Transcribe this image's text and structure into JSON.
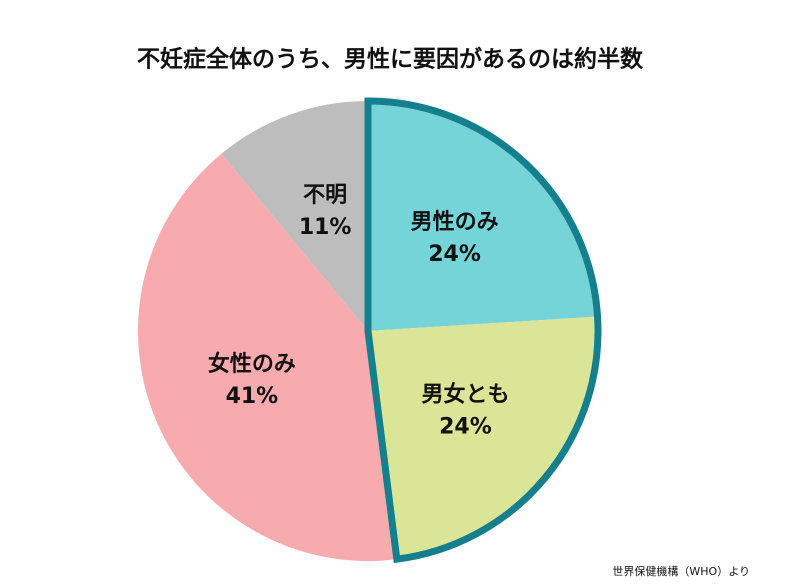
{
  "chart_data": {
    "type": "pie",
    "title": "不妊症全体のうち、男性に要因があるのは約半数",
    "categories": [
      "男性のみ",
      "男女とも",
      "女性のみ",
      "不明"
    ],
    "values": [
      24,
      24,
      41,
      11
    ],
    "value_labels": [
      "24%",
      "24%",
      "41%",
      "11%"
    ],
    "colors": [
      "#74d4d7",
      "#dae597",
      "#f8abaf",
      "#bdbdbd"
    ],
    "outlined": [
      true,
      true,
      false,
      false
    ],
    "outline_color": "#167f8d",
    "source": "世界保健機構（WHO）より"
  }
}
